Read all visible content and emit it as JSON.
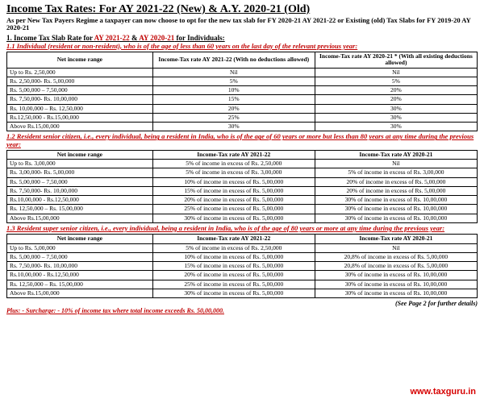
{
  "title": "Income Tax Rates: For AY 2021-22 (New) & A.Y. 2020-21 (Old)",
  "subtitle": "As per New Tax Payers Regime a taxpayer can now choose to opt for the new tax slab for FY 2020-21 AY 2021-22 or Existing (old) Tax Slabs for FY 2019-20 AY 2020-21",
  "section1": {
    "pre": "1. Income Tax Slab Rate for ",
    "red1": "AY 2021-22",
    "mid": " & ",
    "red2": "AY 2020-21",
    "post": " for Individuals:"
  },
  "sub11": "1.1 Individual (resident or non-resident), who is of the age of less than 60 years on the last day of the relevant  previous year:",
  "sub12": "1.2 Resident senior citizen, i.e., every individual, being a resident in India, who is of the age of 60 years or more but less than 80 years at any time during the previous year:",
  "sub13": "1.3 Resident super senior citizen, i.e., every individual, being a resident in India, who is of the age of 80 years or more at any time during the previous year:",
  "headers1": {
    "c0": "Net income range",
    "c1": "Income-Tax rate AY 2021-22 (With no deductions allowed)",
    "c2": "Income-Tax rate AY 2020-21 * (With all existing deductions allowed)"
  },
  "headers2": {
    "c0": "Net income range",
    "c1": "Income-Tax rate AY 2021-22",
    "c2": "Income-Tax rate AY 2020-21"
  },
  "t1": [
    {
      "r": "Up to Rs. 2,50,000",
      "a": "Nil",
      "b": "Nil"
    },
    {
      "r": "Rs. 2,50,000- Rs. 5,00,000",
      "a": "5%",
      "b": "5%"
    },
    {
      "r": "Rs. 5,00,000 – 7,50,000",
      "a": "10%",
      "b": "20%"
    },
    {
      "r": "Rs. 7,50,000- Rs. 10,00,000",
      "a": "15%",
      "b": "20%"
    },
    {
      "r": "Rs. 10,00,000 – Rs. 12,50,000",
      "a": "20%",
      "b": "30%"
    },
    {
      "r": "Rs.12,50,000 - Rs.15,00,000",
      "a": "25%",
      "b": "30%"
    },
    {
      "r": "Above Rs.15,00,000",
      "a": "30%",
      "b": "30%"
    }
  ],
  "t2": [
    {
      "r": "Up to Rs. 3,00,000",
      "a": "5% of income in excess of Rs. 2,50,000",
      "b": "Nil"
    },
    {
      "r": "Rs. 3,00,000- Rs. 5,00,000",
      "a": "5% of income in excess of Rs. 3,00,000",
      "b": "5% of income in excess of Rs. 3,00,000"
    },
    {
      "r": "Rs. 5,00,000 – 7,50,000",
      "a": "10% of income in excess of Rs. 5,00,000",
      "b": "20% of income in excess of Rs. 5,00,000"
    },
    {
      "r": "Rs. 7,50,000- Rs. 10,00,000",
      "a": "15% of income in excess of Rs. 5,00,000",
      "b": "20% of income in excess of Rs. 5,00,000"
    },
    {
      "r": "Rs.10,00,000 - Rs.12,50,000",
      "a": "20% of income in excess of Rs. 5,00,000",
      "b": "30% of income in excess of Rs. 10,00,000"
    },
    {
      "r": "Rs. 12,50,000 – Rs. 15,00,000",
      "a": "25% of income in excess of Rs. 5,00,000",
      "b": "30% of income in excess of Rs. 10,00,000"
    },
    {
      "r": "Above Rs.15,00,000",
      "a": "30% of income in excess of Rs. 5,00,000",
      "b": "30% of income in excess of Rs. 10,00,000"
    }
  ],
  "t3": [
    {
      "r": "Up to Rs. 5,00,000",
      "a": "5% of income in excess of Rs. 2,50,000",
      "b": "Nil"
    },
    {
      "r": "Rs. 5,00,000 – 7,50,000",
      "a": "10% of income in excess of Rs. 5,00,000",
      "b": "20,8% of income in excess of Rs. 5,00,000"
    },
    {
      "r": "Rs. 7,50,000- Rs. 10,00,000",
      "a": "15% of income in excess of Rs. 5,00,000",
      "b": "20,8% of income in excess of Rs. 5,00,000"
    },
    {
      "r": "Rs.10,00,000 - Rs.12,50,000",
      "a": "20% of income in excess of Rs. 5,00,000",
      "b": "30% of income in excess of Rs. 10,00,000"
    },
    {
      "r": "Rs. 12,50,000 – Rs. 15,00,000",
      "a": "25% of income in excess of Rs. 5,00,000",
      "b": "30% of income in excess of Rs. 10,00,000"
    },
    {
      "r": "Above Rs.15,00,000",
      "a": "30% of income in excess of Rs. 5,00,000",
      "b": "30% of income in excess of Rs. 10,00,000"
    }
  ],
  "seepage": "(See Page 2 for further details)",
  "surcharge": "Plus: - Surcharge: - 10% of income tax where total income exceeds Rs. 50,00,000.",
  "watermark": "www.taxguru.in"
}
